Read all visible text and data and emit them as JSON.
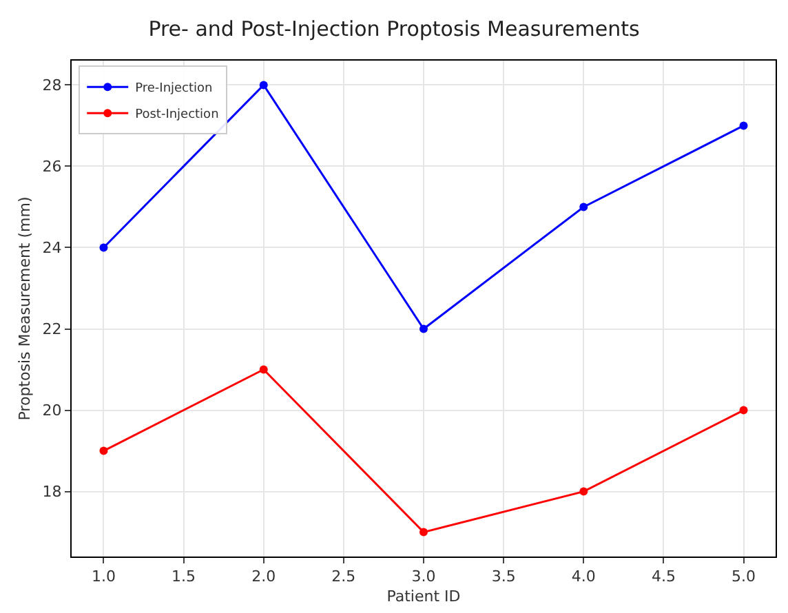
{
  "chart_data": {
    "type": "line",
    "title": "Pre- and Post-Injection Proptosis Measurements",
    "xlabel": "Patient ID",
    "ylabel": "Proptosis Measurement (mm)",
    "x": [
      1,
      2,
      3,
      4,
      5
    ],
    "series": [
      {
        "name": "Pre-Injection",
        "color": "#0000ff",
        "values": [
          24,
          28,
          22,
          25,
          27
        ]
      },
      {
        "name": "Post-Injection",
        "color": "#ff0000",
        "values": [
          19,
          21,
          17,
          18,
          20
        ]
      }
    ],
    "xlim": [
      0.8,
      5.2
    ],
    "xticks": [
      {
        "value": 1,
        "label": "1.0"
      },
      {
        "value": 1.5,
        "label": "1.5"
      },
      {
        "value": 2,
        "label": "2.0"
      },
      {
        "value": 2.5,
        "label": "2.5"
      },
      {
        "value": 3,
        "label": "3.0"
      },
      {
        "value": 3.5,
        "label": "3.5"
      },
      {
        "value": 4,
        "label": "4.0"
      },
      {
        "value": 4.5,
        "label": "4.5"
      },
      {
        "value": 5,
        "label": "5.0"
      }
    ],
    "ylim": [
      16.4,
      28.6
    ],
    "yticks": [
      18,
      20,
      22,
      24,
      26,
      28
    ],
    "grid": true,
    "legend": "top left",
    "marker": "circle",
    "line_style": "solid"
  }
}
